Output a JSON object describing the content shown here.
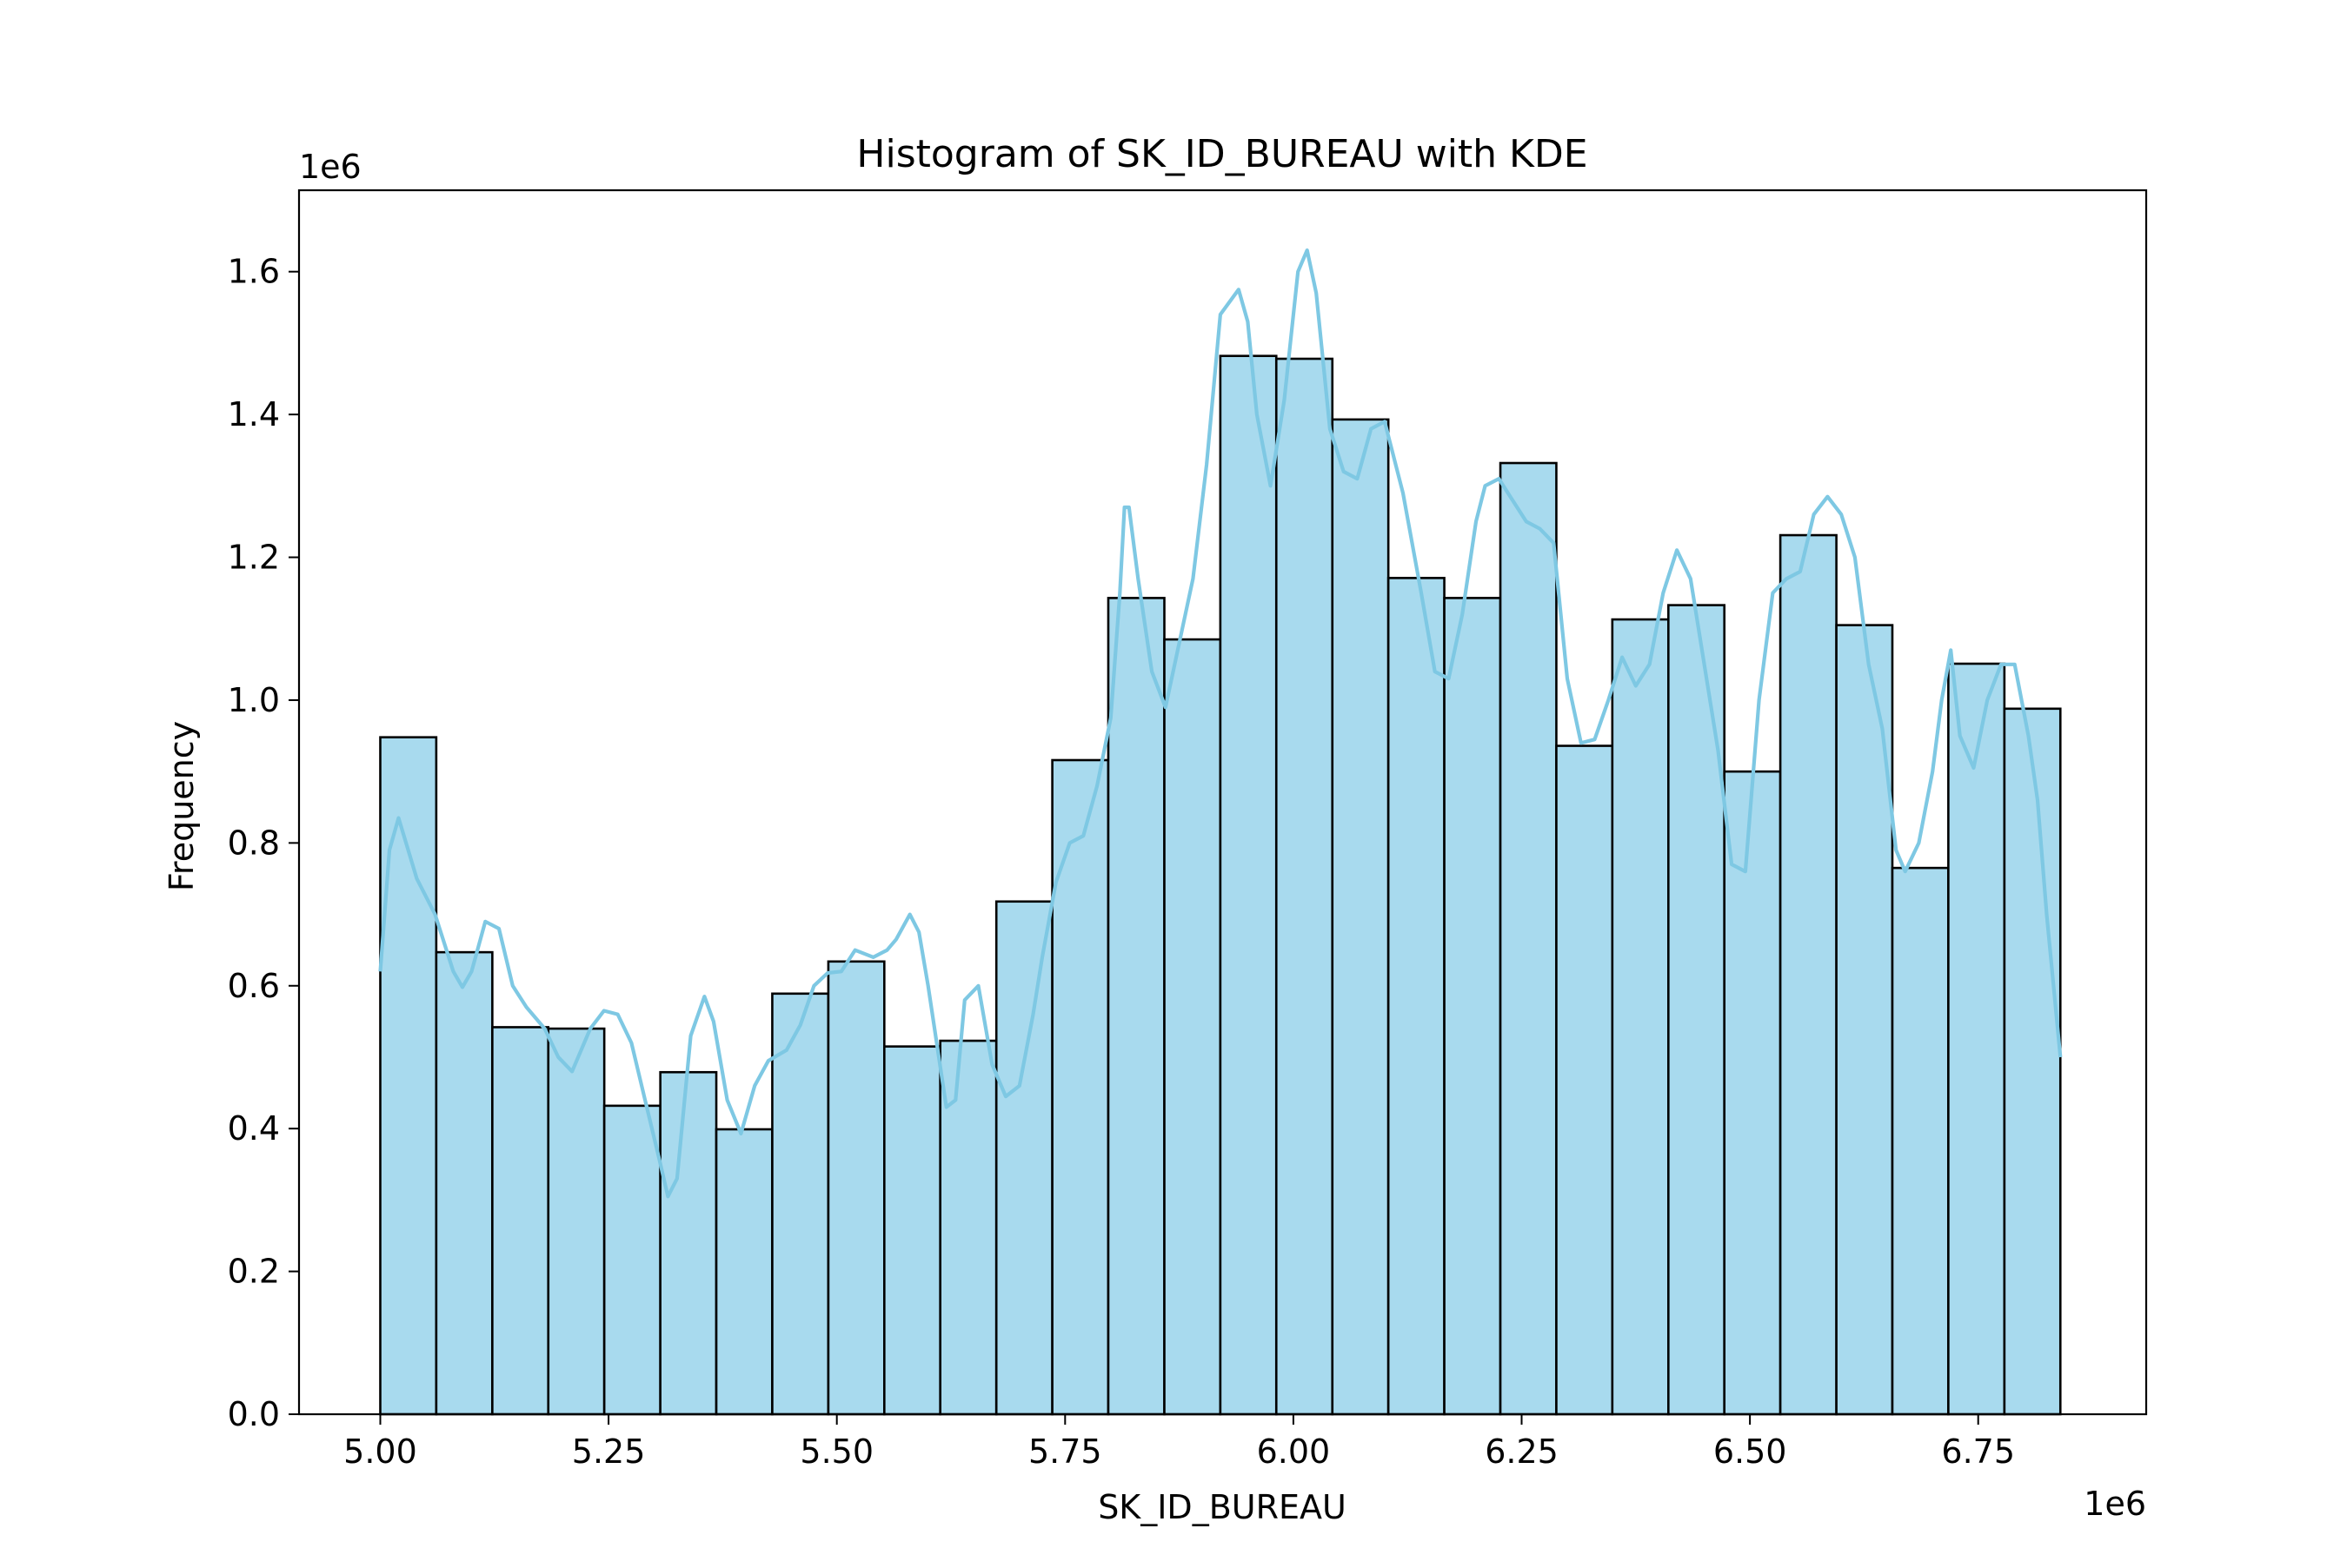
{
  "chart_data": {
    "type": "bar",
    "title": "Histogram of SK_ID_BUREAU with KDE",
    "xlabel": "SK_ID_BUREAU",
    "ylabel": "Frequency",
    "x_offset_label": "1e6",
    "y_offset_label": "1e6",
    "xlim": [
      4.911,
      6.934
    ],
    "ylim": [
      0,
      1.714
    ],
    "xticks": [
      5.0,
      5.25,
      5.5,
      5.75,
      6.0,
      6.25,
      6.5,
      6.75
    ],
    "xtick_labels": [
      "5.00",
      "5.25",
      "5.50",
      "5.75",
      "6.00",
      "6.25",
      "6.50",
      "6.75"
    ],
    "yticks": [
      0.0,
      0.2,
      0.4,
      0.6,
      0.8,
      1.0,
      1.2,
      1.4,
      1.6
    ],
    "ytick_labels": [
      "0.0",
      "0.2",
      "0.4",
      "0.6",
      "0.8",
      "1.0",
      "1.2",
      "1.4",
      "1.6"
    ],
    "bin_edges": [
      5.0,
      5.0613,
      5.1227,
      5.184,
      5.2453,
      5.3067,
      5.368,
      5.4293,
      5.4907,
      5.552,
      5.6133,
      5.6747,
      5.736,
      5.7973,
      5.8587,
      5.92,
      5.9813,
      6.0427,
      6.104,
      6.1653,
      6.2267,
      6.288,
      6.3493,
      6.4107,
      6.472,
      6.5333,
      6.5947,
      6.656,
      6.7173,
      6.7787,
      6.84
    ],
    "values": [
      0.948,
      0.647,
      0.542,
      0.54,
      0.432,
      0.479,
      0.399,
      0.589,
      0.634,
      0.515,
      0.523,
      0.718,
      0.916,
      1.143,
      1.085,
      1.482,
      1.478,
      1.393,
      1.171,
      1.143,
      1.332,
      0.936,
      1.113,
      1.133,
      0.9,
      1.231,
      1.105,
      0.765,
      1.051,
      0.988
    ],
    "kde": {
      "x": [
        5.0,
        5.01,
        5.02,
        5.04,
        5.06,
        5.08,
        5.09,
        5.1,
        5.115,
        5.13,
        5.145,
        5.16,
        5.18,
        5.195,
        5.21,
        5.23,
        5.245,
        5.26,
        5.275,
        5.29,
        5.305,
        5.315,
        5.325,
        5.34,
        5.355,
        5.365,
        5.38,
        5.395,
        5.41,
        5.425,
        5.445,
        5.46,
        5.475,
        5.49,
        5.505,
        5.52,
        5.54,
        5.555,
        5.565,
        5.58,
        5.59,
        5.6,
        5.62,
        5.63,
        5.64,
        5.655,
        5.67,
        5.685,
        5.7,
        5.715,
        5.725,
        5.74,
        5.755,
        5.77,
        5.785,
        5.8,
        5.81,
        5.815,
        5.82,
        5.83,
        5.845,
        5.86,
        5.875,
        5.89,
        5.905,
        5.92,
        5.94,
        5.95,
        5.96,
        5.975,
        5.99,
        6.005,
        6.015,
        6.025,
        6.04,
        6.055,
        6.07,
        6.085,
        6.1,
        6.12,
        6.14,
        6.155,
        6.17,
        6.185,
        6.2,
        6.21,
        6.225,
        6.24,
        6.255,
        6.27,
        6.285,
        6.3,
        6.315,
        6.33,
        6.345,
        6.36,
        6.375,
        6.39,
        6.405,
        6.42,
        6.435,
        6.45,
        6.465,
        6.48,
        6.495,
        6.51,
        6.525,
        6.54,
        6.555,
        6.57,
        6.585,
        6.6,
        6.615,
        6.63,
        6.645,
        6.66,
        6.67,
        6.685,
        6.7,
        6.71,
        6.72,
        6.73,
        6.745,
        6.76,
        6.775,
        6.79,
        6.805,
        6.815,
        6.825,
        6.84
      ],
      "y": [
        0.62,
        0.79,
        0.835,
        0.75,
        0.7,
        0.62,
        0.598,
        0.62,
        0.69,
        0.68,
        0.6,
        0.57,
        0.54,
        0.5,
        0.48,
        0.54,
        0.565,
        0.56,
        0.52,
        0.44,
        0.36,
        0.305,
        0.33,
        0.53,
        0.585,
        0.55,
        0.44,
        0.393,
        0.46,
        0.495,
        0.51,
        0.545,
        0.6,
        0.618,
        0.62,
        0.65,
        0.64,
        0.65,
        0.665,
        0.7,
        0.675,
        0.6,
        0.43,
        0.44,
        0.58,
        0.6,
        0.49,
        0.445,
        0.46,
        0.56,
        0.64,
        0.745,
        0.8,
        0.81,
        0.88,
        0.975,
        1.15,
        1.27,
        1.27,
        1.17,
        1.04,
        0.99,
        1.08,
        1.17,
        1.33,
        1.54,
        1.575,
        1.53,
        1.4,
        1.3,
        1.42,
        1.6,
        1.63,
        1.57,
        1.38,
        1.32,
        1.31,
        1.38,
        1.39,
        1.29,
        1.15,
        1.04,
        1.03,
        1.12,
        1.25,
        1.3,
        1.31,
        1.28,
        1.25,
        1.24,
        1.22,
        1.03,
        0.94,
        0.945,
        1.0,
        1.06,
        1.02,
        1.05,
        1.15,
        1.21,
        1.17,
        1.05,
        0.93,
        0.77,
        0.76,
        1.0,
        1.15,
        1.17,
        1.18,
        1.26,
        1.285,
        1.26,
        1.2,
        1.05,
        0.96,
        0.79,
        0.76,
        0.8,
        0.9,
        1.0,
        1.07,
        0.95,
        0.905,
        1.0,
        1.05,
        1.05,
        0.95,
        0.86,
        0.7,
        0.5
      ]
    },
    "grid": false,
    "legend": "none",
    "colors": {
      "bar_fill": "#a8daee",
      "bar_edge": "#000000",
      "kde_line": "#7ec8e3",
      "axes": "#000000",
      "background": "#ffffff"
    }
  }
}
